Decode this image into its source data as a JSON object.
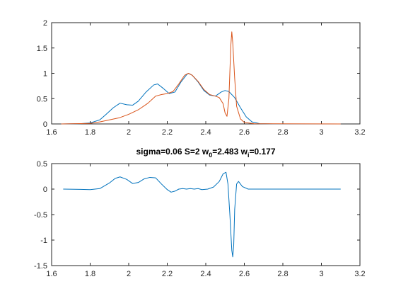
{
  "chart_data": [
    {
      "type": "line",
      "title": "",
      "xlabel": "",
      "ylabel": "",
      "xlim": [
        1.6,
        3.2
      ],
      "ylim": [
        0,
        2
      ],
      "xticks": [
        "1.6",
        "1.8",
        "2",
        "2.2",
        "2.4",
        "2.6",
        "2.8",
        "3",
        "3.2"
      ],
      "yticks": [
        "0",
        "0.5",
        "1",
        "1.5",
        "2"
      ],
      "grid": false,
      "box": true,
      "series": [
        {
          "color": "#0072BD",
          "points": [
            [
              1.65,
              0
            ],
            [
              1.75,
              0.005
            ],
            [
              1.8,
              0.02
            ],
            [
              1.85,
              0.08
            ],
            [
              1.88,
              0.18
            ],
            [
              1.92,
              0.32
            ],
            [
              1.955,
              0.41
            ],
            [
              1.99,
              0.38
            ],
            [
              2.02,
              0.37
            ],
            [
              2.05,
              0.45
            ],
            [
              2.09,
              0.63
            ],
            [
              2.13,
              0.77
            ],
            [
              2.15,
              0.79
            ],
            [
              2.18,
              0.7
            ],
            [
              2.21,
              0.6
            ],
            [
              2.24,
              0.63
            ],
            [
              2.27,
              0.82
            ],
            [
              2.3,
              0.97
            ],
            [
              2.31,
              1.0
            ],
            [
              2.33,
              0.96
            ],
            [
              2.36,
              0.83
            ],
            [
              2.39,
              0.66
            ],
            [
              2.42,
              0.57
            ],
            [
              2.45,
              0.55
            ],
            [
              2.48,
              0.63
            ],
            [
              2.5,
              0.66
            ],
            [
              2.52,
              0.64
            ],
            [
              2.55,
              0.52
            ],
            [
              2.58,
              0.32
            ],
            [
              2.61,
              0.14
            ],
            [
              2.64,
              0.04
            ],
            [
              2.68,
              0.005
            ],
            [
              2.75,
              0
            ],
            [
              3.1,
              0
            ]
          ]
        },
        {
          "color": "#D95319",
          "points": [
            [
              1.65,
              0
            ],
            [
              1.8,
              0.01
            ],
            [
              1.85,
              0.04
            ],
            [
              1.9,
              0.08
            ],
            [
              1.95,
              0.12
            ],
            [
              2.0,
              0.19
            ],
            [
              2.05,
              0.28
            ],
            [
              2.1,
              0.41
            ],
            [
              2.14,
              0.55
            ],
            [
              2.17,
              0.58
            ],
            [
              2.2,
              0.6
            ],
            [
              2.23,
              0.64
            ],
            [
              2.26,
              0.79
            ],
            [
              2.29,
              0.96
            ],
            [
              2.31,
              1.0
            ],
            [
              2.33,
              0.96
            ],
            [
              2.36,
              0.84
            ],
            [
              2.39,
              0.68
            ],
            [
              2.42,
              0.58
            ],
            [
              2.45,
              0.55
            ],
            [
              2.47,
              0.52
            ],
            [
              2.49,
              0.4
            ],
            [
              2.5,
              0.22
            ],
            [
              2.51,
              0.15
            ],
            [
              2.52,
              0.5
            ],
            [
              2.53,
              1.55
            ],
            [
              2.535,
              1.82
            ],
            [
              2.54,
              1.6
            ],
            [
              2.55,
              0.9
            ],
            [
              2.56,
              0.35
            ],
            [
              2.58,
              0.1
            ],
            [
              2.6,
              0.03
            ],
            [
              2.65,
              0.005
            ],
            [
              3.1,
              0
            ]
          ]
        }
      ]
    },
    {
      "type": "line",
      "title": "sigma=0.06 S=2 w",
      "title_parts": [
        {
          "text": "sigma=0.06 S=2 w"
        },
        {
          "sub": "0"
        },
        {
          "text": "=2.483 w"
        },
        {
          "sub": "i"
        },
        {
          "text": "=0.177"
        }
      ],
      "xlabel": "",
      "ylabel": "",
      "xlim": [
        1.6,
        3.2
      ],
      "ylim": [
        -1.5,
        0.5
      ],
      "xticks": [
        "1.6",
        "1.8",
        "2",
        "2.2",
        "2.4",
        "2.6",
        "2.8",
        "3",
        "3.2"
      ],
      "yticks": [
        "-1.5",
        "-1",
        "-0.5",
        "0",
        "0.5"
      ],
      "grid": false,
      "box": true,
      "series": [
        {
          "color": "#0072BD",
          "points": [
            [
              1.66,
              0
            ],
            [
              1.75,
              -0.005
            ],
            [
              1.8,
              -0.01
            ],
            [
              1.85,
              0.01
            ],
            [
              1.9,
              0.12
            ],
            [
              1.93,
              0.21
            ],
            [
              1.955,
              0.24
            ],
            [
              1.99,
              0.19
            ],
            [
              2.02,
              0.11
            ],
            [
              2.05,
              0.13
            ],
            [
              2.08,
              0.2
            ],
            [
              2.11,
              0.23
            ],
            [
              2.14,
              0.22
            ],
            [
              2.17,
              0.1
            ],
            [
              2.2,
              -0.01
            ],
            [
              2.22,
              -0.06
            ],
            [
              2.24,
              -0.04
            ],
            [
              2.26,
              0.0
            ],
            [
              2.28,
              0.01
            ],
            [
              2.3,
              0.0
            ],
            [
              2.32,
              0.01
            ],
            [
              2.34,
              0.0
            ],
            [
              2.36,
              0.01
            ],
            [
              2.38,
              -0.01
            ],
            [
              2.41,
              0.0
            ],
            [
              2.44,
              0.04
            ],
            [
              2.47,
              0.15
            ],
            [
              2.49,
              0.3
            ],
            [
              2.505,
              0.33
            ],
            [
              2.515,
              0.1
            ],
            [
              2.525,
              -0.5
            ],
            [
              2.535,
              -1.2
            ],
            [
              2.54,
              -1.33
            ],
            [
              2.545,
              -1.1
            ],
            [
              2.55,
              -0.4
            ],
            [
              2.56,
              0.1
            ],
            [
              2.57,
              0.15
            ],
            [
              2.59,
              0.05
            ],
            [
              2.62,
              0.0
            ],
            [
              3.1,
              0
            ]
          ]
        }
      ]
    }
  ]
}
